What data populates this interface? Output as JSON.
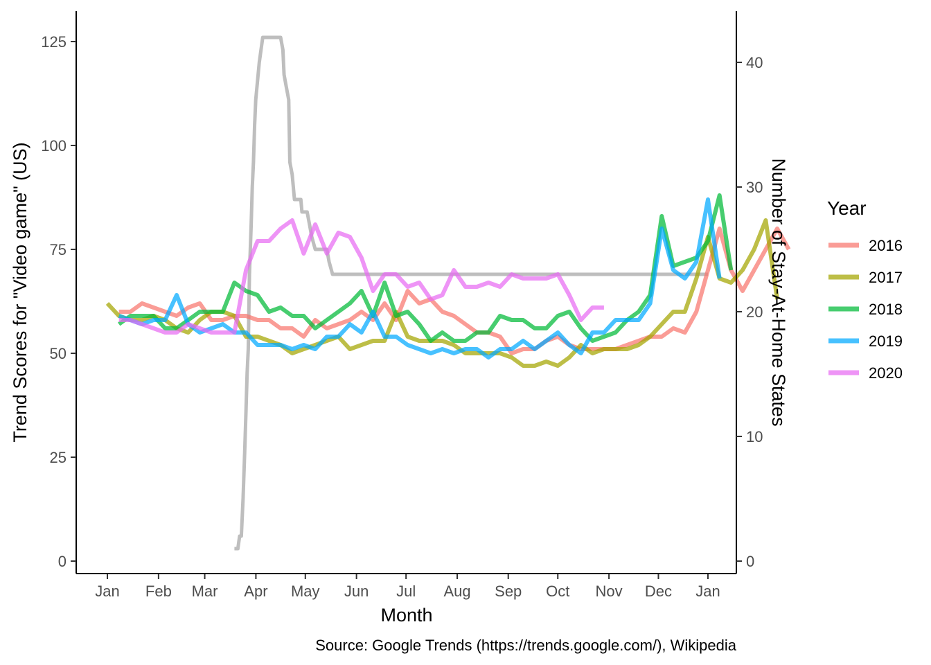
{
  "chart_data": {
    "type": "line",
    "xlabel": "Month",
    "ylabel": "Trend Scores for \"Video game\" (US)",
    "y2label": "Number of Stay-At-Home States",
    "caption": "Source: Google Trends (https://trends.google.com/), Wikipedia",
    "legend_title": "Year",
    "legend_position": "right",
    "grid": false,
    "ylim": [
      0,
      125
    ],
    "y2lim": [
      0,
      40
    ],
    "x_tick_labels": [
      "Jan",
      "Feb",
      "Mar",
      "Apr",
      "May",
      "Jun",
      "Jul",
      "Aug",
      "Sep",
      "Oct",
      "Nov",
      "Dec",
      "Jan"
    ],
    "y_ticks": [
      0,
      25,
      50,
      75,
      100,
      125
    ],
    "y2_ticks": [
      0,
      10,
      20,
      30,
      40
    ],
    "series": [
      {
        "name": "2016",
        "color": "#F8766D",
        "week_start": 1,
        "values": [
          60,
          60,
          62,
          61,
          60,
          59,
          61,
          62,
          58,
          58,
          59,
          59,
          58,
          58,
          56,
          56,
          54,
          58,
          56,
          57,
          58,
          60,
          58,
          62,
          58,
          65,
          62,
          63,
          60,
          59,
          57,
          55,
          55,
          54,
          50,
          51,
          51,
          53,
          54,
          52,
          51,
          51,
          51,
          51,
          52,
          53,
          54,
          54,
          56,
          55,
          60,
          70,
          80,
          70,
          65,
          70,
          75,
          80,
          75
        ]
      },
      {
        "name": "2017",
        "color": "#A3A500",
        "week_start": 0,
        "values": [
          62,
          59,
          58,
          58,
          59,
          58,
          56,
          55,
          58,
          60,
          60,
          59,
          54,
          54,
          53,
          52,
          50,
          51,
          52,
          53,
          54,
          51,
          52,
          53,
          53,
          60,
          54,
          53,
          53,
          53,
          52,
          50,
          50,
          50,
          50,
          49,
          47,
          47,
          48,
          47,
          49,
          52,
          50,
          51,
          51,
          51,
          52,
          54,
          57,
          60,
          60,
          68,
          78,
          68,
          67,
          70,
          75,
          82,
          63
        ]
      },
      {
        "name": "2018",
        "color": "#00BA38",
        "week_start": 1,
        "values": [
          57,
          59,
          59,
          59,
          56,
          56,
          58,
          60,
          60,
          60,
          67,
          65,
          64,
          60,
          61,
          59,
          59,
          56,
          58,
          60,
          62,
          65,
          59,
          67,
          59,
          60,
          57,
          53,
          55,
          53,
          53,
          55,
          55,
          59,
          58,
          58,
          56,
          56,
          59,
          60,
          56,
          53,
          54,
          55,
          58,
          60,
          64,
          83,
          71,
          72,
          73,
          77,
          88,
          70
        ]
      },
      {
        "name": "2019",
        "color": "#00A9FF",
        "week_start": 1,
        "values": [
          59,
          58,
          57,
          58,
          58,
          64,
          57,
          55,
          56,
          57,
          55,
          55,
          52,
          52,
          52,
          51,
          52,
          51,
          54,
          54,
          57,
          55,
          60,
          54,
          54,
          52,
          51,
          50,
          51,
          50,
          51,
          51,
          49,
          51,
          51,
          53,
          51,
          53,
          55,
          52,
          50,
          55,
          55,
          58,
          58,
          58,
          62,
          80,
          70,
          68,
          72,
          87,
          68
        ]
      },
      {
        "name": "2020",
        "color": "#E76BF3",
        "week_start": 1,
        "values": [
          58,
          58,
          57,
          56,
          55,
          55,
          57,
          56,
          55,
          55,
          55,
          70,
          77,
          77,
          80,
          82,
          74,
          81,
          74,
          79,
          78,
          73,
          65,
          69,
          69,
          66,
          67,
          63,
          64,
          70,
          66,
          66,
          67,
          66,
          69,
          68,
          68,
          68,
          69,
          64,
          58,
          61,
          61
        ]
      }
    ],
    "stay_at_home": {
      "name": "Stay-At-Home States",
      "color": "#BEBEBE",
      "axis": "right",
      "points": [
        [
          11.0,
          1
        ],
        [
          11.3,
          1
        ],
        [
          11.45,
          2
        ],
        [
          11.6,
          2
        ],
        [
          11.75,
          5
        ],
        [
          11.9,
          9
        ],
        [
          12.0,
          12
        ],
        [
          12.1,
          15
        ],
        [
          12.2,
          17
        ],
        [
          12.3,
          23
        ],
        [
          12.45,
          27
        ],
        [
          12.55,
          30
        ],
        [
          12.65,
          32
        ],
        [
          12.75,
          35
        ],
        [
          12.85,
          37
        ],
        [
          12.95,
          38
        ],
        [
          13.15,
          40
        ],
        [
          13.3,
          41
        ],
        [
          13.45,
          42
        ],
        [
          13.6,
          42
        ],
        [
          14.0,
          42
        ],
        [
          14.8,
          42
        ],
        [
          15.0,
          42
        ],
        [
          15.2,
          41
        ],
        [
          15.3,
          39
        ],
        [
          15.5,
          38
        ],
        [
          15.7,
          37
        ],
        [
          15.8,
          32
        ],
        [
          16.0,
          31
        ],
        [
          16.2,
          29
        ],
        [
          16.4,
          29
        ],
        [
          16.6,
          29
        ],
        [
          16.75,
          29
        ],
        [
          16.85,
          28
        ],
        [
          17.0,
          28
        ],
        [
          17.3,
          28
        ],
        [
          17.5,
          27
        ],
        [
          17.7,
          26
        ],
        [
          18.0,
          25
        ],
        [
          18.5,
          25
        ],
        [
          19.0,
          25
        ],
        [
          19.2,
          24
        ],
        [
          19.5,
          23
        ],
        [
          20,
          23
        ],
        [
          25,
          23
        ],
        [
          30,
          23
        ],
        [
          35,
          23
        ],
        [
          40,
          23
        ],
        [
          45,
          23
        ],
        [
          50,
          23
        ],
        [
          52,
          23
        ]
      ]
    }
  }
}
